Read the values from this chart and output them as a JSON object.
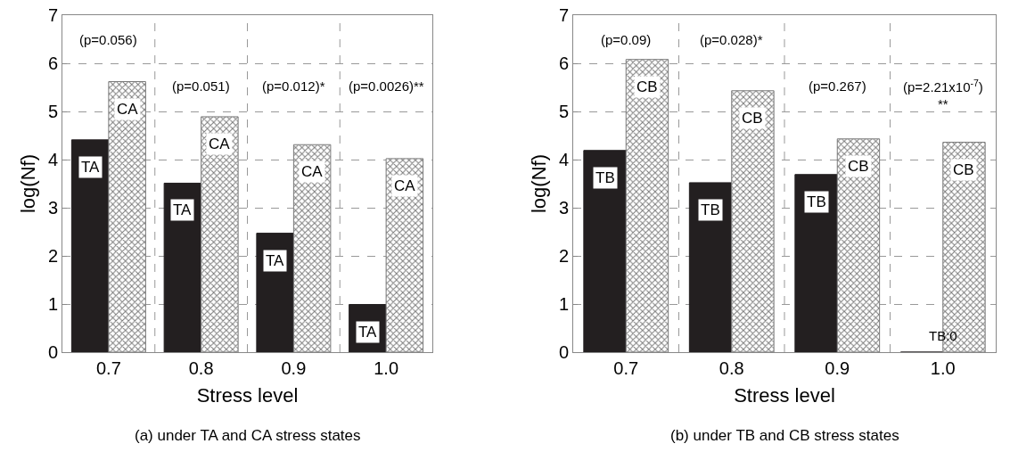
{
  "chart_data": [
    {
      "type": "bar",
      "title": "(a) under TA and CA stress states",
      "xlabel": "Stress level",
      "ylabel": "log(Nf)",
      "categories": [
        "0.7",
        "0.8",
        "0.9",
        "1.0"
      ],
      "series": [
        {
          "name": "TA",
          "color": "#231f20",
          "values": [
            4.41,
            3.51,
            2.47,
            0.99
          ]
        },
        {
          "name": "CA",
          "color": "#7a7a7a",
          "values": [
            5.62,
            4.89,
            4.31,
            4.02
          ]
        }
      ],
      "ylim": [
        0,
        7
      ],
      "yticks": [
        0,
        1,
        2,
        3,
        4,
        5,
        6,
        7
      ],
      "grid": true,
      "legend": false,
      "annotations": [
        "(p=0.056)",
        "(p=0.051)",
        "(p=0.012)*",
        "(p=0.0026)**"
      ]
    },
    {
      "type": "bar",
      "title": "(b) under TB and CB stress states",
      "xlabel": "Stress level",
      "ylabel": "log(Nf)",
      "categories": [
        "0.7",
        "0.8",
        "0.9",
        "1.0"
      ],
      "series": [
        {
          "name": "TB",
          "color": "#231f20",
          "values": [
            4.19,
            3.52,
            3.69,
            0
          ]
        },
        {
          "name": "CB",
          "color": "#7a7a7a",
          "values": [
            6.08,
            5.43,
            4.43,
            4.36
          ]
        }
      ],
      "ylim": [
        0,
        7
      ],
      "yticks": [
        0,
        1,
        2,
        3,
        4,
        5,
        6,
        7
      ],
      "grid": true,
      "legend": false,
      "annotations": [
        "(p=0.09)",
        "(p=0.028)*",
        "(p=0.267)",
        "(p=2.21x10$^{-7}$)\n**",
        {
          "text": "TB:0",
          "x": "1.0",
          "y": 0
        }
      ]
    }
  ]
}
